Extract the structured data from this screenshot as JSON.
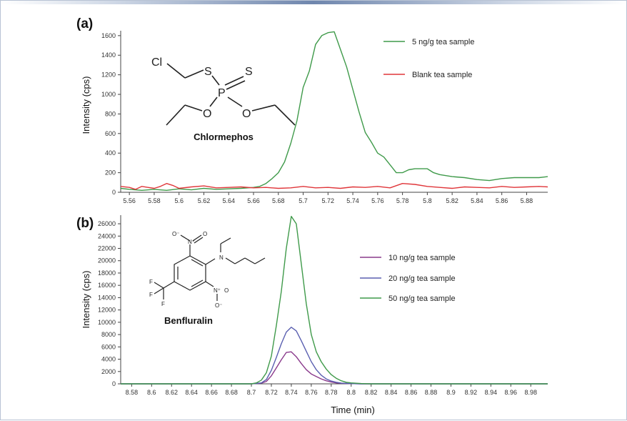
{
  "x_label": "Time (min)",
  "colors": {
    "green": "#3f9a4a",
    "red": "#e0363a",
    "purple": "#8a3a8c",
    "blue": "#5a5fb0",
    "axis": "#444444"
  },
  "chart_data": [
    {
      "type": "line",
      "panel_label": "(a)",
      "compound_name": "Chlormephos",
      "atom_labels": [
        "Cl",
        "S",
        "S",
        "P",
        "O",
        "O"
      ],
      "ylabel": "Intensity (cps)",
      "xlabel": "",
      "xlim": [
        5.553,
        5.897
      ],
      "ylim": [
        0,
        1650
      ],
      "x_ticks": [
        5.56,
        5.58,
        5.6,
        5.62,
        5.64,
        5.66,
        5.68,
        5.7,
        5.72,
        5.74,
        5.76,
        5.78,
        5.8,
        5.82,
        5.84,
        5.86,
        5.88
      ],
      "x_tick_labels": [
        "5.56",
        "5.58",
        "5.6",
        "5.62",
        "5.64",
        "5.66",
        "5.68",
        "5.7",
        "5.72",
        "5.74",
        "5.76",
        "5.78",
        "5.8",
        "5.82",
        "5.84",
        "5.86",
        "5.88"
      ],
      "y_ticks": [
        0,
        200,
        400,
        600,
        800,
        1000,
        1200,
        1400,
        1600
      ],
      "y_tick_labels": [
        "0",
        "200",
        "400",
        "600",
        "800",
        "1000",
        "1200",
        "1400",
        "1600"
      ],
      "legend_position": "top-right",
      "series": [
        {
          "name": "5 ng/g tea sample",
          "color": "#3f9a4a",
          "x": [
            5.553,
            5.56,
            5.57,
            5.58,
            5.59,
            5.6,
            5.61,
            5.62,
            5.63,
            5.64,
            5.65,
            5.66,
            5.665,
            5.67,
            5.675,
            5.68,
            5.685,
            5.69,
            5.695,
            5.7,
            5.705,
            5.71,
            5.715,
            5.72,
            5.725,
            5.73,
            5.735,
            5.74,
            5.745,
            5.75,
            5.755,
            5.76,
            5.765,
            5.77,
            5.775,
            5.78,
            5.785,
            5.79,
            5.795,
            5.8,
            5.805,
            5.81,
            5.82,
            5.83,
            5.84,
            5.85,
            5.86,
            5.87,
            5.88,
            5.89,
            5.897
          ],
          "y": [
            40,
            30,
            20,
            30,
            20,
            35,
            25,
            40,
            30,
            35,
            40,
            50,
            60,
            90,
            140,
            200,
            310,
            500,
            730,
            1070,
            1240,
            1510,
            1600,
            1630,
            1640,
            1460,
            1280,
            1050,
            820,
            610,
            510,
            400,
            360,
            280,
            200,
            200,
            230,
            240,
            240,
            240,
            200,
            180,
            160,
            150,
            130,
            120,
            140,
            150,
            150,
            150,
            160
          ]
        },
        {
          "name": "Blank tea sample",
          "color": "#e0363a",
          "x": [
            5.553,
            5.56,
            5.565,
            5.57,
            5.575,
            5.58,
            5.585,
            5.59,
            5.595,
            5.6,
            5.61,
            5.62,
            5.63,
            5.64,
            5.65,
            5.66,
            5.67,
            5.68,
            5.69,
            5.7,
            5.71,
            5.72,
            5.73,
            5.74,
            5.75,
            5.76,
            5.77,
            5.78,
            5.79,
            5.8,
            5.81,
            5.82,
            5.83,
            5.84,
            5.85,
            5.86,
            5.87,
            5.88,
            5.89,
            5.897
          ],
          "y": [
            60,
            50,
            30,
            60,
            50,
            40,
            60,
            90,
            70,
            40,
            55,
            65,
            45,
            50,
            55,
            45,
            50,
            40,
            45,
            60,
            45,
            50,
            40,
            55,
            50,
            60,
            45,
            90,
            80,
            60,
            50,
            40,
            55,
            50,
            45,
            60,
            50,
            55,
            60,
            55
          ]
        }
      ]
    },
    {
      "type": "line",
      "panel_label": "(b)",
      "compound_name": "Benfluralin",
      "atom_labels": [
        "N",
        "N⁺",
        "N⁺",
        "O",
        "O",
        "O⁻",
        "O⁻",
        "F",
        "F",
        "F"
      ],
      "ylabel": "Intensity (cps)",
      "xlabel": "Time (min)",
      "xlim": [
        8.569,
        8.997
      ],
      "ylim": [
        0,
        27400
      ],
      "x_ticks": [
        8.58,
        8.6,
        8.62,
        8.64,
        8.66,
        8.68,
        8.7,
        8.72,
        8.74,
        8.76,
        8.78,
        8.8,
        8.82,
        8.84,
        8.86,
        8.88,
        8.9,
        8.92,
        8.94,
        8.96,
        8.98
      ],
      "x_tick_labels": [
        "8.58",
        "8.6",
        "8.62",
        "8.64",
        "8.66",
        "8.68",
        "8.7",
        "8.72",
        "8.74",
        "8.76",
        "8.78",
        "8.8",
        "8.82",
        "8.84",
        "8.86",
        "8.88",
        "8.9",
        "8.92",
        "8.94",
        "8.96",
        "8.98"
      ],
      "y_ticks": [
        0,
        2000,
        4000,
        6000,
        8000,
        10000,
        12000,
        14000,
        16000,
        18000,
        20000,
        22000,
        24000,
        26000
      ],
      "y_tick_labels": [
        "0",
        "2000",
        "4000",
        "6000",
        "8000",
        "10000",
        "12000",
        "14000",
        "16000",
        "18000",
        "20000",
        "22000",
        "24000",
        "26000"
      ],
      "legend_position": "right",
      "series": [
        {
          "name": "10 ng/g tea sample",
          "color": "#8a3a8c",
          "x": [
            8.569,
            8.7,
            8.71,
            8.715,
            8.72,
            8.725,
            8.73,
            8.735,
            8.74,
            8.745,
            8.75,
            8.755,
            8.76,
            8.765,
            8.77,
            8.775,
            8.78,
            8.785,
            8.79,
            8.8,
            8.81,
            8.997
          ],
          "y": [
            0,
            0,
            100,
            400,
            1300,
            2600,
            3900,
            5100,
            5200,
            4400,
            3300,
            2300,
            1600,
            1200,
            800,
            500,
            300,
            150,
            80,
            30,
            0,
            0
          ]
        },
        {
          "name": "20 ng/g tea sample",
          "color": "#5a5fb0",
          "x": [
            8.569,
            8.7,
            8.71,
            8.715,
            8.72,
            8.725,
            8.73,
            8.735,
            8.74,
            8.745,
            8.75,
            8.755,
            8.76,
            8.765,
            8.77,
            8.775,
            8.78,
            8.785,
            8.79,
            8.8,
            8.81,
            8.997
          ],
          "y": [
            0,
            0,
            150,
            700,
            2200,
            4300,
            6500,
            8400,
            9200,
            8600,
            7000,
            5300,
            3600,
            2300,
            1400,
            800,
            450,
            250,
            120,
            40,
            0,
            0
          ]
        },
        {
          "name": "50 ng/g tea sample",
          "color": "#3f9a4a",
          "x": [
            8.569,
            8.7,
            8.705,
            8.71,
            8.715,
            8.72,
            8.725,
            8.73,
            8.735,
            8.74,
            8.745,
            8.75,
            8.755,
            8.76,
            8.765,
            8.77,
            8.775,
            8.78,
            8.785,
            8.79,
            8.795,
            8.8,
            8.81,
            8.82,
            8.997
          ],
          "y": [
            0,
            0,
            150,
            600,
            1800,
            4500,
            9500,
            15000,
            22000,
            27200,
            26000,
            19500,
            13000,
            8000,
            5200,
            3600,
            2400,
            1500,
            900,
            500,
            250,
            150,
            50,
            0,
            0
          ]
        }
      ]
    }
  ]
}
